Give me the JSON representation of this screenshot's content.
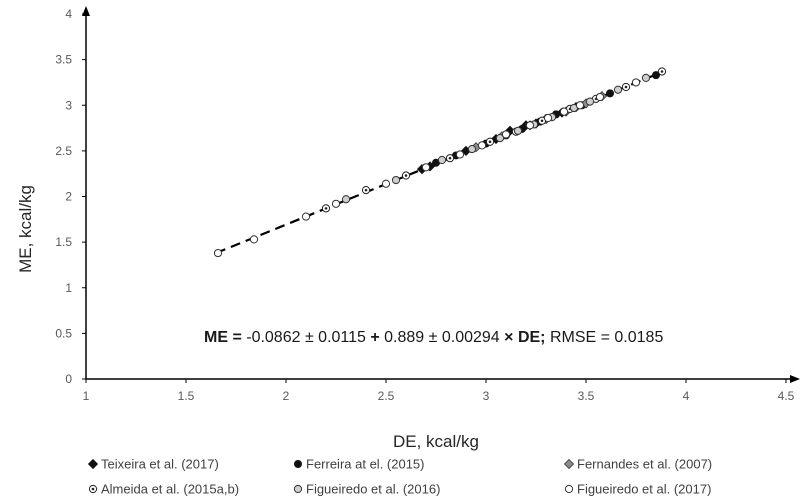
{
  "chart_data": {
    "type": "scatter",
    "title": "",
    "xlabel": "DE, kcal/kg",
    "ylabel": "ME, kcal/kg",
    "xlim": [
      1,
      4.5
    ],
    "ylim": [
      0,
      4
    ],
    "x_ticks": [
      "1",
      "1.5",
      "2",
      "2.5",
      "3",
      "3.5",
      "4",
      "4.5"
    ],
    "y_ticks": [
      "0",
      "0.5",
      "1",
      "1.5",
      "2",
      "2.5",
      "3",
      "3.5",
      "4"
    ],
    "grid": false,
    "legend_position": "bottom",
    "equation": {
      "lhs": "ME",
      "eq_sign": " = ",
      "intercept": "-0.0862 ± 0.0115",
      "plus": " + ",
      "slope": "0.889 ± 0.00294",
      "times": " × ",
      "var": "DE",
      "semicolon": ";",
      "rmse": " RMSE = 0.0185"
    },
    "fit_line": {
      "intercept": -0.0862,
      "slope": 0.889,
      "x_range": [
        1.65,
        3.88
      ],
      "style": "dashed"
    },
    "series": [
      {
        "name": "Teixeira et al. (2017)",
        "marker": "diamond-filled",
        "x": [
          2.68,
          2.72,
          2.9,
          3.05,
          3.12,
          3.2,
          3.25,
          3.3,
          3.38,
          3.45
        ],
        "y": [
          2.3,
          2.33,
          2.5,
          2.63,
          2.72,
          2.78,
          2.8,
          2.85,
          2.92,
          2.98
        ]
      },
      {
        "name": "Ferreira at el. (2015)",
        "marker": "circle-filled",
        "x": [
          2.75,
          2.85,
          3.0,
          3.1,
          3.18,
          3.27,
          3.35,
          3.48,
          3.62,
          3.85
        ],
        "y": [
          2.37,
          2.45,
          2.58,
          2.67,
          2.74,
          2.82,
          2.9,
          3.0,
          3.13,
          3.33
        ]
      },
      {
        "name": "Fernandes et al. (2007)",
        "marker": "diamond-gray",
        "x": [
          2.95,
          3.08,
          3.22,
          3.3,
          3.4,
          3.5,
          3.58
        ],
        "y": [
          2.54,
          2.66,
          2.78,
          2.85,
          2.93,
          3.02,
          3.1
        ]
      },
      {
        "name": "Almeida et al. (2015a,b)",
        "marker": "circle-dot",
        "x": [
          2.2,
          2.4,
          2.6,
          2.82,
          3.02,
          3.15,
          3.28,
          3.42,
          3.55,
          3.7,
          3.88
        ],
        "y": [
          1.87,
          2.07,
          2.23,
          2.42,
          2.6,
          2.71,
          2.83,
          2.96,
          3.07,
          3.2,
          3.37
        ]
      },
      {
        "name": "Figueiredo et al. (2016)",
        "marker": "circle-gray",
        "x": [
          2.3,
          2.55,
          2.78,
          2.93,
          3.07,
          3.16,
          3.24,
          3.33,
          3.44,
          3.52,
          3.66,
          3.8
        ],
        "y": [
          1.97,
          2.18,
          2.4,
          2.52,
          2.64,
          2.72,
          2.79,
          2.87,
          2.97,
          3.04,
          3.17,
          3.3
        ]
      },
      {
        "name": "Figueiredo et al. (2017)",
        "marker": "circle-open",
        "x": [
          1.66,
          1.84,
          2.1,
          2.25,
          2.5,
          2.7,
          2.87,
          2.98,
          3.1,
          3.22,
          3.31,
          3.39,
          3.47,
          3.57,
          3.75
        ],
        "y": [
          1.38,
          1.53,
          1.78,
          1.92,
          2.14,
          2.32,
          2.46,
          2.56,
          2.68,
          2.78,
          2.86,
          2.93,
          3.0,
          3.09,
          3.25
        ]
      }
    ]
  }
}
